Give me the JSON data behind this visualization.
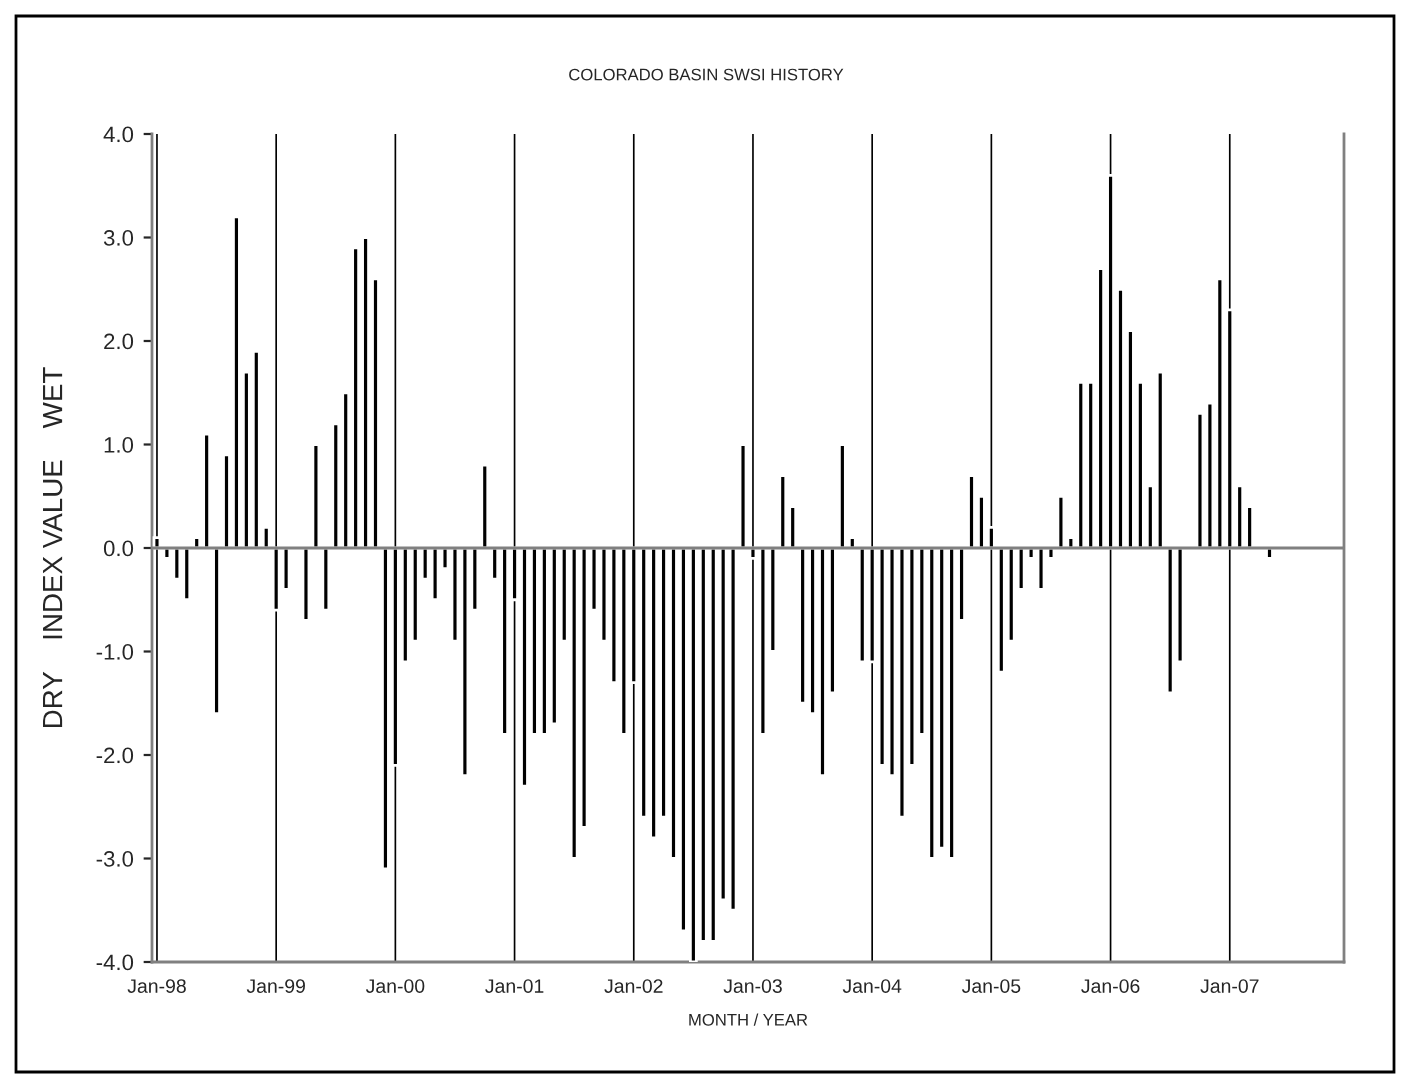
{
  "chart_data": {
    "type": "bar",
    "title": "COLORADO BASIN SWSI HISTORY",
    "xlabel": "MONTH / YEAR",
    "ylabel": "DRY    INDEX VALUE    WET",
    "categories": [
      "Jan-98",
      null,
      null,
      null,
      null,
      null,
      null,
      null,
      null,
      null,
      null,
      null,
      "Jan-99",
      null,
      null,
      null,
      null,
      null,
      null,
      null,
      null,
      null,
      null,
      null,
      "Jan-00",
      null,
      null,
      null,
      null,
      null,
      null,
      null,
      null,
      null,
      null,
      null,
      "Jan-01",
      null,
      null,
      null,
      null,
      null,
      null,
      null,
      null,
      null,
      null,
      null,
      "Jan-02",
      null,
      null,
      null,
      null,
      null,
      null,
      null,
      null,
      null,
      null,
      null,
      "Jan-03",
      null,
      null,
      null,
      null,
      null,
      null,
      null,
      null,
      null,
      null,
      null,
      "Jan-04",
      null,
      null,
      null,
      null,
      null,
      null,
      null,
      null,
      null,
      null,
      null,
      "Jan-05",
      null,
      null,
      null,
      null,
      null,
      null,
      null,
      null,
      null,
      null,
      null,
      "Jan-06",
      null,
      null,
      null,
      null,
      null,
      null,
      null,
      null,
      null,
      null,
      null,
      "Jan-07",
      null,
      null,
      null,
      null,
      null,
      null,
      null,
      null,
      null,
      null,
      null
    ],
    "values": [
      0.1,
      -0.1,
      -0.3,
      -0.5,
      0.1,
      1.1,
      -1.6,
      0.9,
      3.2,
      1.7,
      1.9,
      0.2,
      -0.6,
      -0.4,
      null,
      -0.7,
      1.0,
      -0.6,
      1.2,
      1.5,
      2.9,
      3.0,
      2.6,
      -3.1,
      -2.1,
      -1.1,
      -0.9,
      -0.3,
      -0.5,
      -0.2,
      -0.9,
      -2.2,
      -0.6,
      0.8,
      -0.3,
      -1.8,
      -0.5,
      -2.3,
      -1.8,
      -1.8,
      -1.7,
      -0.9,
      -3.0,
      -2.7,
      -0.6,
      -0.9,
      -1.3,
      -1.8,
      -1.3,
      -2.6,
      -2.8,
      -2.6,
      -3.0,
      -3.7,
      -4.0,
      -3.8,
      -3.8,
      -3.4,
      -3.5,
      1.0,
      -0.1,
      -1.8,
      -1.0,
      0.7,
      0.4,
      -1.5,
      -1.6,
      -2.2,
      -1.4,
      1.0,
      0.1,
      -1.1,
      -1.1,
      -2.1,
      -2.2,
      -2.6,
      -2.1,
      -1.8,
      -3.0,
      -2.9,
      -3.0,
      -0.7,
      0.7,
      0.5,
      0.2,
      -1.2,
      -0.9,
      -0.4,
      -0.1,
      -0.4,
      -0.1,
      0.5,
      0.1,
      1.6,
      1.6,
      2.7,
      3.6,
      2.5,
      2.1,
      1.6,
      0.6,
      1.7,
      -1.4,
      -1.1,
      null,
      1.3,
      1.4,
      2.6,
      2.3,
      0.6,
      0.4,
      null,
      -0.1,
      null,
      null,
      null,
      null,
      null,
      null,
      null
    ],
    "color": "#000000",
    "ylim": [
      -4.0,
      4.0
    ],
    "yticks": [
      {
        "value": -4,
        "label": "-4.0"
      },
      {
        "value": -3,
        "label": "-3.0"
      },
      {
        "value": -2,
        "label": "-2.0"
      },
      {
        "value": -1,
        "label": "-1.0"
      },
      {
        "value": 0,
        "label": "0.0"
      },
      {
        "value": 1,
        "label": "1.0"
      },
      {
        "value": 2,
        "label": "2.0"
      },
      {
        "value": 3,
        "label": "3.0"
      },
      {
        "value": 4,
        "label": "4.0"
      }
    ],
    "grid": "x"
  }
}
